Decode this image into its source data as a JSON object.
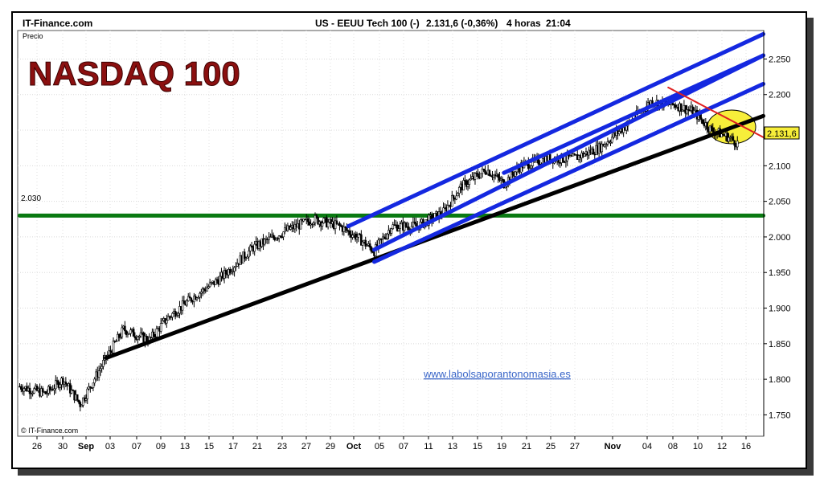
{
  "header": {
    "brand": "IT-Finance.com",
    "instrument": "US - EEUU Tech 100 (-)",
    "last_value": "2.131,6 (-0,36%)",
    "timeframe": "4 horas",
    "time": "21:04"
  },
  "chart_data": {
    "type": "candlestick",
    "title": "NASDAQ 100",
    "ylabel": "Precio",
    "watermark": "www.labolsaporantonomasia.es",
    "copyright": "© IT-Finance.com",
    "ylim": [
      1720,
      2290
    ],
    "y_ticks": [
      1750,
      1800,
      1850,
      1900,
      1950,
      2000,
      2050,
      2100,
      2150,
      2200,
      2250
    ],
    "y_tick_labels": [
      "1.750",
      "1.800",
      "1.850",
      "1.900",
      "1.950",
      "2.000",
      "2.050",
      "2.100",
      "2.150",
      "2.200",
      "2.250"
    ],
    "x_labels": [
      "26",
      "30",
      "Sep",
      "03",
      "07",
      "09",
      "13",
      "15",
      "17",
      "21",
      "23",
      "27",
      "29",
      "Oct",
      "05",
      "07",
      "11",
      "13",
      "15",
      "19",
      "21",
      "25",
      "27",
      "Nov",
      "04",
      "08",
      "10",
      "12",
      "16"
    ],
    "month_labels": [
      "Sep",
      "Oct",
      "Nov"
    ],
    "current_price_label": "2.131,6",
    "current_price": 2131.6,
    "support_level": 2030,
    "support_label": "2.030",
    "colors": {
      "price": "#000000",
      "support_line": "#0a7a12",
      "trend_line": "#000000",
      "channel_lines": "#1428e0",
      "resistance_line": "#e02020",
      "highlight_circle": "#f7ee3a",
      "title": "#8b1010"
    },
    "price_anchors": [
      {
        "x": "Aug 24",
        "y": 1790
      },
      {
        "x": "Aug 27",
        "y": 1780
      },
      {
        "x": "Aug 29",
        "y": 1800
      },
      {
        "x": "Aug 31",
        "y": 1765
      },
      {
        "x": "Sep 03",
        "y": 1830
      },
      {
        "x": "Sep 05",
        "y": 1870
      },
      {
        "x": "Sep 08",
        "y": 1855
      },
      {
        "x": "Sep 10",
        "y": 1885
      },
      {
        "x": "Sep 13",
        "y": 1915
      },
      {
        "x": "Sep 16",
        "y": 1940
      },
      {
        "x": "Sep 20",
        "y": 1985
      },
      {
        "x": "Sep 24",
        "y": 2010
      },
      {
        "x": "Sep 27",
        "y": 2025
      },
      {
        "x": "Sep 30",
        "y": 2015
      },
      {
        "x": "Oct 02",
        "y": 2000
      },
      {
        "x": "Oct 04",
        "y": 1980
      },
      {
        "x": "Oct 06",
        "y": 2015
      },
      {
        "x": "Oct 09",
        "y": 2015
      },
      {
        "x": "Oct 12",
        "y": 2035
      },
      {
        "x": "Oct 14",
        "y": 2070
      },
      {
        "x": "Oct 17",
        "y": 2095
      },
      {
        "x": "Oct 19",
        "y": 2075
      },
      {
        "x": "Oct 21",
        "y": 2100
      },
      {
        "x": "Oct 24",
        "y": 2110
      },
      {
        "x": "Oct 27",
        "y": 2110
      },
      {
        "x": "Oct 30",
        "y": 2125
      },
      {
        "x": "Nov 02",
        "y": 2155
      },
      {
        "x": "Nov 05",
        "y": 2190
      },
      {
        "x": "Nov 08",
        "y": 2185
      },
      {
        "x": "Nov 10",
        "y": 2175
      },
      {
        "x": "Nov 12",
        "y": 2150
      },
      {
        "x": "Nov 14",
        "y": 2140
      },
      {
        "x": "Nov 15",
        "y": 2131.6
      }
    ],
    "drawn_lines": [
      {
        "name": "support-2030",
        "from": {
          "x": "Aug 24",
          "y": 2030
        },
        "to": {
          "x": "Nov 18",
          "y": 2030
        }
      },
      {
        "name": "long-trend",
        "from": {
          "x": "Sep 03",
          "y": 1830
        },
        "to": {
          "x": "Nov 18",
          "y": 2170
        }
      },
      {
        "name": "channel-lower-1",
        "from": {
          "x": "Oct 04",
          "y": 1965
        },
        "to": {
          "x": "Nov 18",
          "y": 2215
        }
      },
      {
        "name": "channel-lower-2",
        "from": {
          "x": "Oct 04",
          "y": 1982
        },
        "to": {
          "x": "Nov 18",
          "y": 2255
        }
      },
      {
        "name": "channel-upper-1",
        "from": {
          "x": "Oct 19",
          "y": 2090
        },
        "to": {
          "x": "Nov 18",
          "y": 2255
        }
      },
      {
        "name": "channel-upper-2",
        "from": {
          "x": "Oct 01",
          "y": 2015
        },
        "to": {
          "x": "Nov 18",
          "y": 2285
        }
      },
      {
        "name": "resistance",
        "from": {
          "x": "Nov 07",
          "y": 2210
        },
        "to": {
          "x": "Nov 18",
          "y": 2140
        }
      }
    ]
  }
}
